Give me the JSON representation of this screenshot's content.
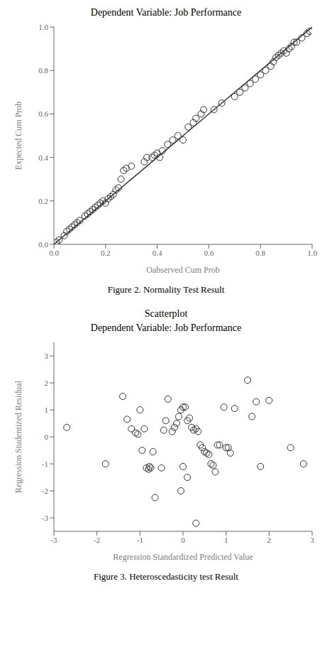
{
  "chart_data": [
    {
      "type": "scatter",
      "title": "Dependent Variable: Job Performance",
      "xlabel": "Oabserved Cum Prob",
      "ylabel": "Expected Cum Prob",
      "caption": "Figure 2. Normality Test Result",
      "xlim": [
        0,
        1
      ],
      "ylim": [
        0,
        1
      ],
      "xticks": [
        {
          "value": 0,
          "label": "0.0"
        },
        0.2,
        0.4,
        0.6,
        0.8,
        {
          "value": 1,
          "label": "1.0"
        }
      ],
      "yticks": [
        {
          "value": 0,
          "label": "0.0"
        },
        0.2,
        0.4,
        0.6,
        0.8,
        {
          "value": 1,
          "label": "1.0"
        }
      ],
      "grid": false,
      "series": [
        {
          "type": "scatter",
          "marker": "circle",
          "color": "#333333",
          "x": [
            0.01,
            0.02,
            0.04,
            0.05,
            0.06,
            0.07,
            0.08,
            0.09,
            0.1,
            0.12,
            0.13,
            0.14,
            0.15,
            0.16,
            0.17,
            0.18,
            0.19,
            0.2,
            0.21,
            0.22,
            0.23,
            0.24,
            0.25,
            0.26,
            0.27,
            0.28,
            0.3,
            0.35,
            0.36,
            0.38,
            0.39,
            0.4,
            0.41,
            0.42,
            0.44,
            0.46,
            0.48,
            0.5,
            0.52,
            0.54,
            0.55,
            0.57,
            0.58,
            0.62,
            0.65,
            0.7,
            0.72,
            0.74,
            0.76,
            0.78,
            0.8,
            0.82,
            0.84,
            0.85,
            0.86,
            0.87,
            0.88,
            0.89,
            0.9,
            0.91,
            0.92,
            0.93,
            0.94,
            0.96,
            0.98,
            0.99
          ],
          "values": [
            0.01,
            0.02,
            0.04,
            0.06,
            0.07,
            0.08,
            0.09,
            0.1,
            0.11,
            0.13,
            0.14,
            0.15,
            0.16,
            0.17,
            0.18,
            0.19,
            0.2,
            0.19,
            0.21,
            0.22,
            0.23,
            0.25,
            0.26,
            0.3,
            0.34,
            0.35,
            0.36,
            0.38,
            0.4,
            0.4,
            0.41,
            0.42,
            0.4,
            0.43,
            0.46,
            0.48,
            0.5,
            0.48,
            0.54,
            0.56,
            0.58,
            0.6,
            0.62,
            0.62,
            0.65,
            0.68,
            0.7,
            0.72,
            0.74,
            0.76,
            0.78,
            0.8,
            0.82,
            0.84,
            0.86,
            0.87,
            0.88,
            0.89,
            0.88,
            0.9,
            0.91,
            0.93,
            0.93,
            0.95,
            0.97,
            0.98
          ]
        },
        {
          "type": "line",
          "line_style": "solid",
          "color": "#333333",
          "x": [
            0,
            1
          ],
          "values": [
            0,
            1
          ]
        }
      ]
    },
    {
      "type": "scatter",
      "title": "Scatterplot",
      "subtitle": "Dependent Variable: Job Performance",
      "xlabel": "Regression Standardized Predicted Value",
      "ylabel": "Regression Studentized Residual",
      "caption": "Figure 3. Heteroscedasticity test Result",
      "xlim": [
        -3,
        3
      ],
      "ylim": [
        -3.5,
        3.5
      ],
      "xticks": [
        -3,
        -2,
        -1,
        0,
        1,
        2,
        3
      ],
      "yticks": [
        -3,
        -2,
        -1,
        0,
        1,
        2,
        3
      ],
      "grid": false,
      "series": [
        {
          "type": "scatter",
          "marker": "circle",
          "color": "#333333",
          "x": [
            -2.7,
            -1.8,
            -1.4,
            -1.3,
            -1.2,
            -1.1,
            -1.05,
            -1.0,
            -0.95,
            -0.9,
            -0.85,
            -0.8,
            -0.78,
            -0.75,
            -0.7,
            -0.65,
            -0.5,
            -0.45,
            -0.4,
            -0.35,
            -0.25,
            -0.2,
            -0.15,
            -0.1,
            -0.05,
            0.0,
            0.05,
            0.1,
            0.15,
            0.2,
            0.25,
            0.3,
            0.35,
            0.4,
            0.45,
            0.5,
            0.55,
            0.6,
            0.65,
            0.7,
            0.75,
            0.8,
            0.85,
            0.95,
            1.0,
            1.05,
            1.1,
            1.2,
            1.5,
            1.6,
            1.7,
            1.8,
            2.0,
            2.5,
            2.8,
            0.3,
            -0.05,
            0.1,
            0.0
          ],
          "values": [
            0.35,
            -1.0,
            1.5,
            0.65,
            0.3,
            0.15,
            0.1,
            1.0,
            -0.5,
            0.3,
            -1.15,
            -1.2,
            -1.1,
            -1.15,
            -0.55,
            -2.25,
            -1.15,
            0.25,
            0.6,
            1.4,
            0.2,
            0.35,
            0.5,
            0.75,
            1.0,
            1.1,
            1.1,
            0.6,
            0.7,
            0.35,
            0.25,
            0.3,
            0.2,
            -0.3,
            -0.4,
            -0.55,
            -0.6,
            -0.65,
            -1.0,
            -1.05,
            -1.3,
            -0.3,
            -0.3,
            1.1,
            -0.4,
            -0.4,
            -0.6,
            1.05,
            2.1,
            0.75,
            1.3,
            -1.1,
            1.35,
            -0.4,
            -1.0,
            -3.2,
            -2.0,
            -1.5,
            -1.1
          ]
        }
      ]
    }
  ]
}
